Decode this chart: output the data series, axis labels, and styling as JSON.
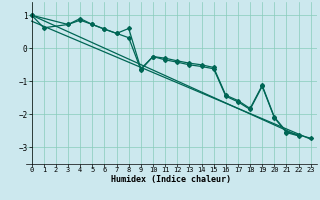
{
  "xlabel": "Humidex (Indice chaleur)",
  "bg_color": "#cce8ee",
  "grid_color": "#88ccbb",
  "line_color": "#006655",
  "xlim": [
    -0.5,
    23.5
  ],
  "ylim": [
    -3.5,
    1.4
  ],
  "yticks": [
    -3,
    -2,
    -1,
    0,
    1
  ],
  "xticks": [
    0,
    1,
    2,
    3,
    4,
    5,
    6,
    7,
    8,
    9,
    10,
    11,
    12,
    13,
    14,
    15,
    16,
    17,
    18,
    19,
    20,
    21,
    22,
    23
  ],
  "lines": [
    {
      "x": [
        0,
        22
      ],
      "y": [
        1.0,
        -2.65
      ]
    },
    {
      "x": [
        0,
        23
      ],
      "y": [
        0.82,
        -2.75
      ]
    },
    {
      "x": [
        0,
        1,
        3,
        4,
        5,
        6,
        7,
        8,
        9,
        10,
        11,
        12,
        13,
        14,
        15,
        16,
        17,
        18,
        19,
        20,
        21,
        22
      ],
      "y": [
        1.0,
        0.62,
        0.72,
        0.85,
        0.72,
        0.58,
        0.45,
        0.32,
        -0.65,
        -0.25,
        -0.35,
        -0.42,
        -0.5,
        -0.55,
        -0.62,
        -1.45,
        -1.62,
        -1.85,
        -1.15,
        -2.1,
        -2.55,
        -2.65
      ]
    },
    {
      "x": [
        0,
        3,
        4,
        5,
        6,
        7,
        8,
        9,
        10,
        11,
        12,
        13,
        14,
        15,
        16,
        17,
        18,
        19,
        20,
        21,
        22,
        23
      ],
      "y": [
        1.0,
        0.72,
        0.9,
        0.72,
        0.58,
        0.45,
        0.6,
        -0.62,
        -0.25,
        -0.3,
        -0.38,
        -0.45,
        -0.5,
        -0.58,
        -1.42,
        -1.58,
        -1.82,
        -1.12,
        -2.08,
        -2.52,
        -2.62,
        -2.72
      ]
    }
  ]
}
